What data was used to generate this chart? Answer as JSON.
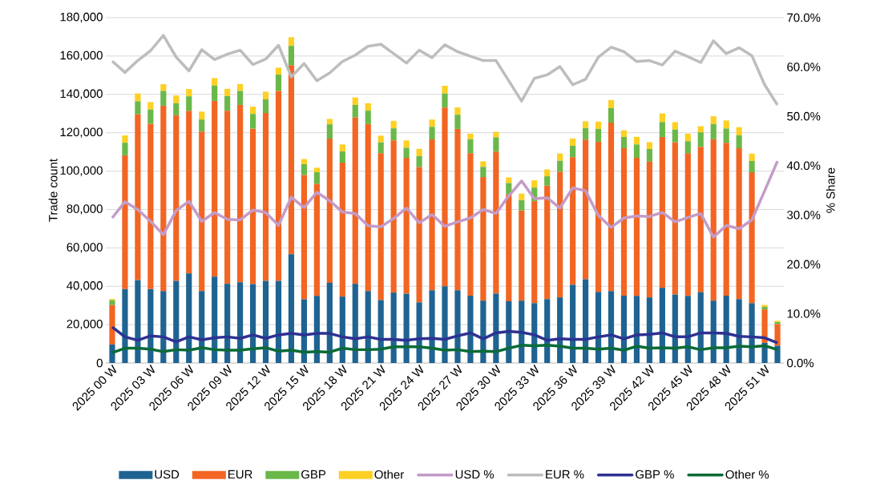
{
  "chart_data": {
    "type": "bar",
    "stacked": true,
    "ylabel": "Trade count",
    "y2label": "% Share",
    "grid": "y",
    "legend": "bottom",
    "categories": [
      "2025 00 W",
      null,
      null,
      "2025 03 W",
      null,
      null,
      "2025 06 W",
      null,
      null,
      "2025 09 W",
      null,
      null,
      "2025 12 W",
      null,
      null,
      "2025 15 W",
      null,
      null,
      "2025 18 W",
      null,
      null,
      "2025 21 W",
      null,
      null,
      "2025 24 W",
      null,
      null,
      "2025 27 W",
      null,
      null,
      "2025 30 W",
      null,
      null,
      "2025 33 W",
      null,
      null,
      "2025 36 W",
      null,
      null,
      "2025 39 W",
      null,
      null,
      "2025 42 W",
      null,
      null,
      "2025 45 W",
      null,
      null,
      "2025 48 W",
      null,
      null,
      "2025 51 W",
      null
    ],
    "ylim": [
      0,
      180000
    ],
    "yticks": [
      0,
      {
        "value": 20000,
        "label": "20,000"
      },
      {
        "value": 40000,
        "label": "40,000"
      },
      {
        "value": 60000,
        "label": "60,000"
      },
      {
        "value": 80000,
        "label": "80,000"
      },
      {
        "value": 100000,
        "label": "100,000"
      },
      {
        "value": 120000,
        "label": "120,000"
      },
      {
        "value": 140000,
        "label": "140,000"
      },
      {
        "value": 160000,
        "label": "160,000"
      },
      {
        "value": 180000,
        "label": "180,000"
      }
    ],
    "y2lim": [
      0,
      70
    ],
    "y2ticks": [
      {
        "value": 0,
        "label": "0.0%"
      },
      {
        "value": 10,
        "label": "10.0%"
      },
      {
        "value": 20,
        "label": "20.0%"
      },
      {
        "value": 30,
        "label": "30.0%"
      },
      {
        "value": 40,
        "label": "40.0%"
      },
      {
        "value": 50,
        "label": "50.0%"
      },
      {
        "value": 60,
        "label": "60.0%"
      },
      {
        "value": 70,
        "label": "70.0%"
      }
    ],
    "series": [
      {
        "name": "USD",
        "color": "#1f6391",
        "values": [
          9700,
          38500,
          43200,
          38500,
          37500,
          42800,
          46700,
          37500,
          45000,
          41300,
          42100,
          41100,
          42800,
          42800,
          56700,
          33200,
          35000,
          41800,
          34600,
          41300,
          37500,
          32800,
          36700,
          36100,
          31600,
          37900,
          40000,
          37900,
          35100,
          32500,
          36200,
          32200,
          32500,
          31200,
          33300,
          34200,
          40800,
          43600,
          37100,
          37500,
          35100,
          35000,
          34200,
          39200,
          35700,
          35000,
          36900,
          32500,
          35100,
          33300,
          31200,
          10500,
          9000
        ]
      },
      {
        "name": "EUR",
        "color": "#f26522",
        "values": [
          20500,
          69700,
          86400,
          86200,
          96600,
          86300,
          84600,
          83100,
          91600,
          90100,
          92400,
          81000,
          87500,
          99000,
          98400,
          64700,
          58300,
          75100,
          69800,
          86600,
          87000,
          76500,
          79300,
          70800,
          70500,
          78600,
          93100,
          84100,
          74200,
          64400,
          74000,
          55600,
          47000,
          53100,
          59100,
          65500,
          66400,
          72800,
          78200,
          87800,
          76800,
          71900,
          70700,
          78600,
          79300,
          74300,
          75800,
          84100,
          79600,
          78600,
          68200,
          17400,
          11200
        ]
      },
      {
        "name": "GBP",
        "color": "#6ab84a",
        "values": [
          2500,
          6600,
          6800,
          7400,
          7700,
          6300,
          7700,
          6300,
          8000,
          7700,
          7300,
          7700,
          7100,
          8500,
          10200,
          5700,
          6100,
          7500,
          5900,
          6600,
          7000,
          5700,
          6300,
          5300,
          5700,
          6600,
          7400,
          7400,
          7300,
          5300,
          7400,
          6000,
          5300,
          7100,
          4900,
          5700,
          6000,
          6000,
          6700,
          7500,
          5900,
          7000,
          6600,
          7800,
          6700,
          6300,
          7500,
          7900,
          7500,
          6800,
          5900,
          1400,
          1100
        ]
      },
      {
        "name": "Other",
        "color": "#fdd023",
        "values": [
          700,
          3800,
          4100,
          3900,
          3500,
          4000,
          3800,
          4100,
          3900,
          3800,
          3600,
          3800,
          4000,
          3600,
          4500,
          2700,
          2400,
          2800,
          3600,
          3900,
          3900,
          3500,
          3900,
          3800,
          3800,
          3800,
          4000,
          3800,
          2900,
          2900,
          2900,
          2900,
          3500,
          3800,
          3600,
          3800,
          3800,
          3600,
          3800,
          4300,
          3500,
          4000,
          3600,
          4500,
          3800,
          3900,
          3200,
          4100,
          4200,
          4200,
          3800,
          1000,
          700
        ]
      },
      {
        "name": "USD %",
        "type": "line",
        "axis": "y2",
        "color": "#c39bc8",
        "values": [
          29.4,
          32.7,
          31.1,
          28.7,
          26.0,
          30.9,
          32.8,
          28.7,
          30.5,
          29.1,
          29.0,
          31.0,
          30.5,
          27.9,
          33.6,
          31.5,
          34.6,
          32.9,
          30.6,
          30.3,
          27.8,
          27.6,
          29.3,
          31.4,
          28.4,
          30.1,
          27.7,
          28.6,
          29.4,
          31.1,
          30.3,
          33.9,
          36.9,
          33.3,
          33.5,
          31.4,
          35.5,
          34.9,
          29.9,
          27.5,
          29.4,
          29.8,
          29.7,
          30.5,
          28.6,
          29.5,
          30.3,
          25.5,
          27.9,
          27.2,
          29.0,
          34.9,
          40.9
        ]
      },
      {
        "name": "EUR %",
        "type": "line",
        "axis": "y2",
        "color": "#bdbdbd",
        "values": [
          61.2,
          58.9,
          61.3,
          63.3,
          66.4,
          62.0,
          59.2,
          63.5,
          61.5,
          62.6,
          63.4,
          60.5,
          61.6,
          64.4,
          58.0,
          60.7,
          57.2,
          58.8,
          61.1,
          62.4,
          64.2,
          64.6,
          62.7,
          60.8,
          63.4,
          61.9,
          64.5,
          63.1,
          62.2,
          61.3,
          61.3,
          57.2,
          53.1,
          57.7,
          58.4,
          60.1,
          56.4,
          57.5,
          62.0,
          64.0,
          63.1,
          61.1,
          61.3,
          60.4,
          63.2,
          62.1,
          60.9,
          65.3,
          62.7,
          63.9,
          62.3,
          56.4,
          52.3
        ]
      },
      {
        "name": "GBP %",
        "type": "line",
        "axis": "y2",
        "color": "#2e3192",
        "values": [
          7.3,
          5.3,
          4.6,
          5.5,
          5.3,
          4.3,
          5.3,
          4.7,
          5.1,
          5.3,
          5.0,
          5.7,
          5.0,
          5.7,
          6.0,
          5.7,
          6.0,
          6.0,
          5.3,
          4.9,
          5.3,
          4.8,
          4.8,
          4.6,
          4.9,
          5.0,
          4.8,
          5.5,
          6.1,
          4.9,
          6.1,
          6.4,
          6.2,
          5.7,
          4.6,
          4.9,
          4.8,
          4.8,
          5.3,
          5.7,
          4.9,
          5.7,
          5.8,
          6.1,
          5.3,
          5.3,
          6.1,
          6.1,
          6.0,
          5.4,
          5.3,
          5.1,
          4.1
        ]
      },
      {
        "name": "Other %",
        "type": "line",
        "axis": "y2",
        "color": "#0a6b36",
        "values": [
          2.1,
          3.0,
          3.0,
          2.8,
          2.3,
          2.7,
          2.6,
          3.1,
          2.7,
          2.6,
          2.6,
          2.9,
          3.1,
          2.4,
          2.6,
          2.2,
          2.3,
          2.2,
          3.0,
          2.7,
          2.7,
          2.8,
          3.3,
          3.3,
          3.3,
          3.0,
          2.6,
          2.7,
          2.3,
          2.4,
          2.3,
          3.0,
          3.6,
          3.5,
          3.6,
          3.4,
          3.0,
          3.0,
          2.8,
          3.0,
          2.6,
          3.4,
          3.0,
          3.1,
          3.0,
          3.3,
          2.7,
          3.1,
          3.1,
          3.4,
          3.3,
          3.5,
          2.7
        ]
      }
    ]
  }
}
